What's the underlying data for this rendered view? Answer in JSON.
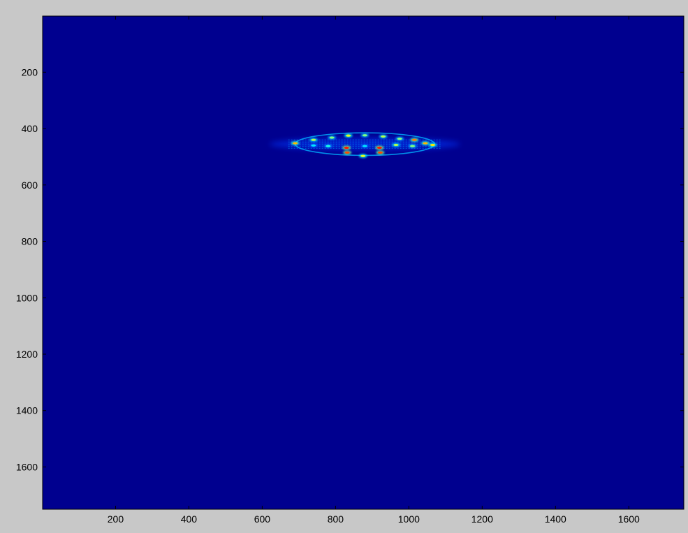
{
  "chart_data": {
    "type": "heatmap",
    "title": "",
    "xlabel": "",
    "ylabel": "",
    "xlim": [
      1,
      1750
    ],
    "ylim": [
      1,
      1750
    ],
    "y_reversed": true,
    "colormap": "jet",
    "background_color": "#00008f",
    "xticks": [
      200,
      400,
      600,
      800,
      1000,
      1200,
      1400,
      1600
    ],
    "yticks": [
      200,
      400,
      600,
      800,
      1000,
      1200,
      1400,
      1600
    ],
    "xtick_labels": [
      "200",
      "400",
      "600",
      "800",
      "1000",
      "1200",
      "1400",
      "1600"
    ],
    "ytick_labels": [
      "200",
      "400",
      "600",
      "800",
      "1000",
      "1200",
      "1400",
      "1600"
    ],
    "grid": false,
    "feature": {
      "description_free": true,
      "center": [
        880,
        455
      ],
      "semi_axes": [
        190,
        40
      ],
      "halo_semi_axes": [
        260,
        22
      ],
      "hotspots": [
        {
          "x": 690,
          "y": 452,
          "intensity": 0.7
        },
        {
          "x": 740,
          "y": 440,
          "intensity": 0.55
        },
        {
          "x": 790,
          "y": 432,
          "intensity": 0.5
        },
        {
          "x": 835,
          "y": 425,
          "intensity": 0.6
        },
        {
          "x": 880,
          "y": 424,
          "intensity": 0.5
        },
        {
          "x": 930,
          "y": 428,
          "intensity": 0.55
        },
        {
          "x": 975,
          "y": 436,
          "intensity": 0.5
        },
        {
          "x": 1015,
          "y": 440,
          "intensity": 0.75
        },
        {
          "x": 1045,
          "y": 452,
          "intensity": 0.7
        },
        {
          "x": 1065,
          "y": 458,
          "intensity": 0.65
        },
        {
          "x": 965,
          "y": 458,
          "intensity": 0.55
        },
        {
          "x": 1010,
          "y": 462,
          "intensity": 0.5
        },
        {
          "x": 830,
          "y": 468,
          "intensity": 0.85
        },
        {
          "x": 832,
          "y": 485,
          "intensity": 0.8
        },
        {
          "x": 920,
          "y": 468,
          "intensity": 0.85
        },
        {
          "x": 922,
          "y": 485,
          "intensity": 0.8
        },
        {
          "x": 875,
          "y": 497,
          "intensity": 0.6
        },
        {
          "x": 780,
          "y": 462,
          "intensity": 0.4
        },
        {
          "x": 740,
          "y": 460,
          "intensity": 0.35
        },
        {
          "x": 880,
          "y": 462,
          "intensity": 0.35
        }
      ]
    }
  }
}
